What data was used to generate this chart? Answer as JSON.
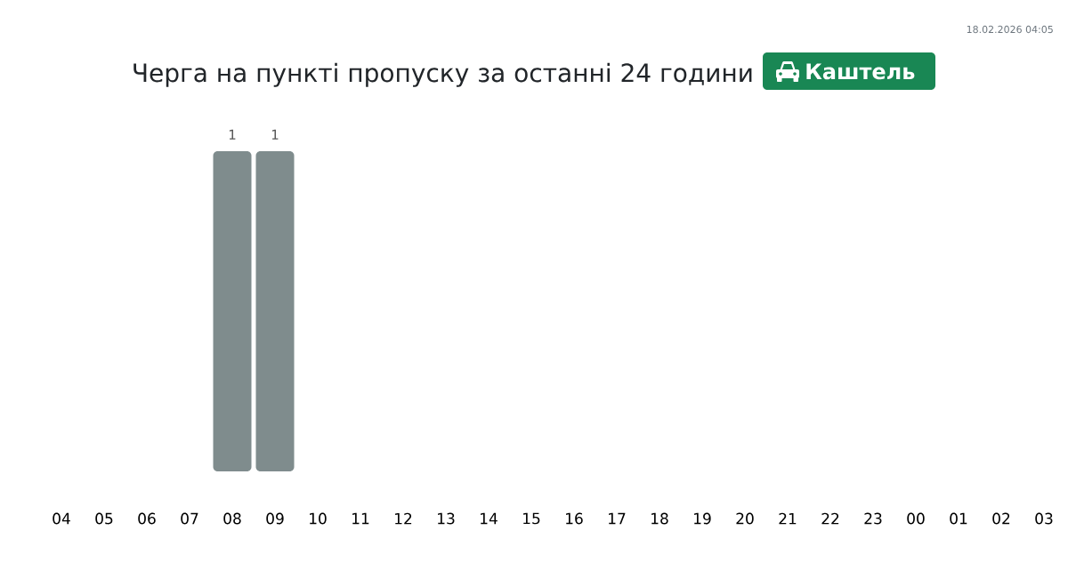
{
  "chart_data": {
    "type": "bar",
    "title": "Черга на пункті пропуску за останні 24 години",
    "subtitle": "Каштель",
    "annotations": [
      "18.02.2026 04:05"
    ],
    "categories": [
      "04",
      "05",
      "06",
      "07",
      "08",
      "09",
      "10",
      "11",
      "12",
      "13",
      "14",
      "15",
      "16",
      "17",
      "18",
      "19",
      "20",
      "21",
      "22",
      "23",
      "00",
      "01",
      "02",
      "03"
    ],
    "values": [
      0,
      0,
      0,
      0,
      1,
      1,
      0,
      0,
      0,
      0,
      0,
      0,
      0,
      0,
      0,
      0,
      0,
      0,
      0,
      0,
      0,
      0,
      0,
      0
    ],
    "value_labels": [
      null,
      null,
      null,
      null,
      "1",
      "1",
      null,
      null,
      null,
      null,
      null,
      null,
      null,
      null,
      null,
      null,
      null,
      null,
      null,
      null,
      null,
      null,
      null,
      null
    ],
    "color": "#7f8c8d"
  }
}
